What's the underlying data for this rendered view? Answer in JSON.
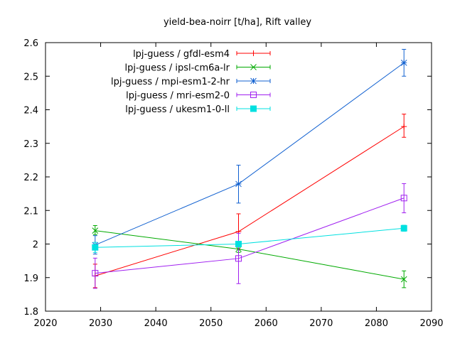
{
  "chart_data": {
    "type": "line",
    "title": "yield-bea-noirr [t/ha], Rift valley",
    "xlabel": "",
    "ylabel": "",
    "xlim": [
      2020,
      2090
    ],
    "ylim": [
      1.8,
      2.6
    ],
    "xticks": [
      2020,
      2030,
      2040,
      2050,
      2060,
      2070,
      2080,
      2090
    ],
    "yticks": [
      1.8,
      1.9,
      2.0,
      2.1,
      2.2,
      2.3,
      2.4,
      2.5,
      2.6
    ],
    "xtick_labels": [
      "2020",
      "2030",
      "2040",
      "2050",
      "2060",
      "2070",
      "2080",
      "2090"
    ],
    "ytick_labels": [
      "1.8",
      "1.9",
      "2",
      "2.1",
      "2.2",
      "2.3",
      "2.4",
      "2.5",
      "2.6"
    ],
    "legend_position": "top-left",
    "grid": false,
    "series": [
      {
        "name": "lpj-guess / gfdl-esm4",
        "color": "#ff0000",
        "marker": "plus",
        "x": [
          2029,
          2055,
          2085
        ],
        "y": [
          1.905,
          2.037,
          2.35
        ],
        "err_low": [
          1.87,
          1.985,
          2.318
        ],
        "err_high": [
          1.94,
          2.09,
          2.387
        ]
      },
      {
        "name": "lpj-guess / ipsl-cm6a-lr",
        "color": "#00aa00",
        "marker": "x",
        "x": [
          2029,
          2055,
          2085
        ],
        "y": [
          2.04,
          1.985,
          1.895
        ],
        "err_low": [
          2.028,
          1.975,
          1.87
        ],
        "err_high": [
          2.055,
          1.995,
          1.92
        ]
      },
      {
        "name": "lpj-guess / mpi-esm1-2-hr",
        "color": "#1060d0",
        "marker": "star",
        "x": [
          2029,
          2055,
          2085
        ],
        "y": [
          1.997,
          2.179,
          2.54
        ],
        "err_low": [
          1.97,
          2.122,
          2.5
        ],
        "err_high": [
          2.025,
          2.235,
          2.58
        ]
      },
      {
        "name": "lpj-guess / mri-esm2-0",
        "color": "#a020f0",
        "marker": "open-square",
        "x": [
          2029,
          2055,
          2085
        ],
        "y": [
          1.913,
          1.957,
          2.137
        ],
        "err_low": [
          1.868,
          1.882,
          2.093
        ],
        "err_high": [
          1.958,
          2.032,
          2.18
        ]
      },
      {
        "name": "lpj-guess / ukesm1-0-ll",
        "color": "#00e0e0",
        "marker": "filled-square",
        "x": [
          2029,
          2055,
          2085
        ],
        "y": [
          1.99,
          2.0,
          2.047
        ],
        "err_low": [
          1.975,
          1.992,
          2.038
        ],
        "err_high": [
          2.005,
          2.008,
          2.056
        ]
      }
    ]
  }
}
